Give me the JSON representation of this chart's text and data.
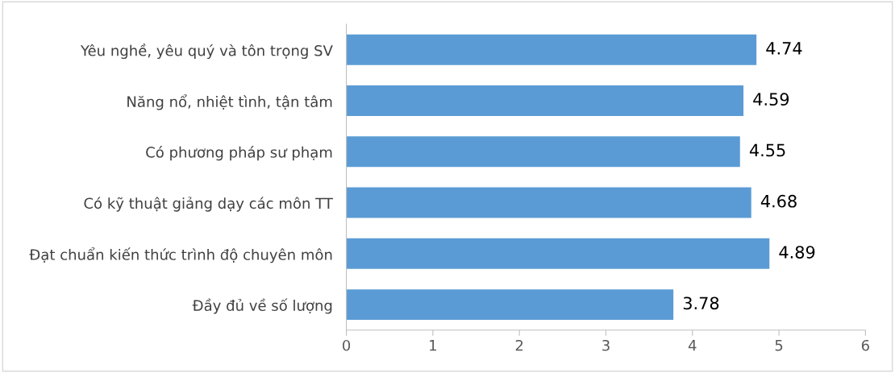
{
  "chart_data": {
    "type": "bar",
    "orientation": "horizontal",
    "categories": [
      "Yêu nghề, yêu quý và tôn trọng SV",
      "Năng nổ, nhiệt tình, tận tâm",
      "Có phương pháp sư phạm",
      "Có kỹ thuật giảng dạy các môn TT",
      "Đạt chuẩn kiến thức trình độ chuyên môn",
      "Đầy đủ về số lượng"
    ],
    "values": [
      4.74,
      4.59,
      4.55,
      4.68,
      4.89,
      3.78
    ],
    "color": "#5b9bd5",
    "xlim": [
      0,
      6
    ],
    "xticks": [
      0,
      1,
      2,
      3,
      4,
      5,
      6
    ],
    "data_labels": true,
    "grid": false
  }
}
